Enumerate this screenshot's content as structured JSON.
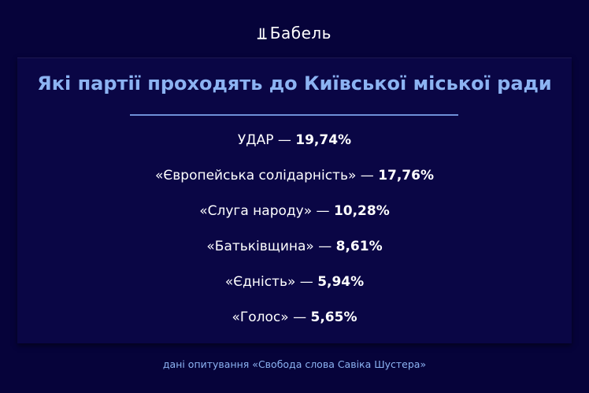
{
  "header": {
    "logo_mark": "Ꙇ",
    "logo_text": "Бабель"
  },
  "card": {
    "title": "Які партії проходять до Київської міської ради",
    "results": [
      {
        "party": "УДАР",
        "separator": " — ",
        "value": "19,74%"
      },
      {
        "party": "«Європейська солідарність»",
        "separator": " — ",
        "value": "17,76%"
      },
      {
        "party": "«Слуга народу»",
        "separator": " — ",
        "value": "10,28%"
      },
      {
        "party": "«Батьківщина»",
        "separator": " — ",
        "value": "8,61%"
      },
      {
        "party": "«Єдність»",
        "separator": " — ",
        "value": "5,94%"
      },
      {
        "party": "«Голос»",
        "separator": " — ",
        "value": "5,65%"
      }
    ]
  },
  "footer": {
    "source": "дані опитування «Свобода слова Савіка Шустера»"
  },
  "colors": {
    "background": "#06033a",
    "card": "#0a0645",
    "accent": "#8cb3f2"
  }
}
